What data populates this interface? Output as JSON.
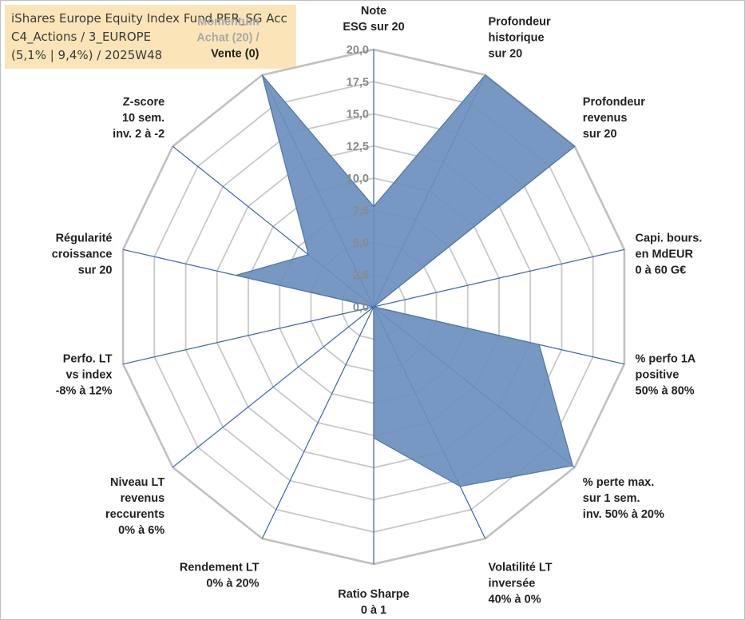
{
  "header": {
    "line1": "iShares Europe Equity Index Fund PER_SG Acc",
    "line2": "C4_Actions / 3_EUROPE",
    "line3": "(5,1% | 9,4%) / 2025W48"
  },
  "colors": {
    "fill": "#6a8fbd",
    "fill_stroke": "#4f75a8",
    "spoke": "#3a63b0",
    "grid": "#c8c8c8",
    "outer_ring": "#c0c0c0",
    "title_bg": "#fbe5b8"
  },
  "chart_data": {
    "type": "radar",
    "title": "",
    "range": [
      0,
      20
    ],
    "grid": true,
    "ticks": [
      "0,0",
      "2,5",
      "5,0",
      "7,5",
      "10,0",
      "12,5",
      "15,0",
      "17,5",
      "20,0"
    ],
    "axes": [
      {
        "label": [
          "Note",
          "ESG sur 20"
        ]
      },
      {
        "label": [
          "Profondeur",
          "historique",
          "sur 20"
        ]
      },
      {
        "label": [
          "Profondeur",
          "revenus",
          "sur 20"
        ]
      },
      {
        "label": [
          "Capi. bours.",
          "en MdEUR",
          "0 à 60 G€"
        ]
      },
      {
        "label": [
          "% perfo 1A",
          "positive",
          "50% à 80%"
        ]
      },
      {
        "label": [
          "% perte max.",
          "sur 1 sem.",
          "inv. 50% à 20%"
        ]
      },
      {
        "label": [
          "Volatilité LT",
          "inversée",
          "40% à 0%"
        ]
      },
      {
        "label": [
          "Ratio Sharpe",
          "0 à 1"
        ]
      },
      {
        "label": [
          "Rendement LT",
          "0% à 20%"
        ]
      },
      {
        "label": [
          "Niveau LT",
          "revenus",
          "reccurents",
          "0% à 6%"
        ]
      },
      {
        "label": [
          "Perfo. LT",
          "vs index",
          "-8% à 12%"
        ]
      },
      {
        "label": [
          "Régularité",
          "croissance",
          "sur 20"
        ]
      },
      {
        "label": [
          "Z-score",
          "10 sem.",
          "inv. 2 à -2"
        ]
      },
      {
        "label": [
          "Momentum",
          "Achat (20) /"
        ],
        "muted": true,
        "label2": [
          "Vente (0)"
        ]
      }
    ],
    "series": [
      {
        "values": [
          7.8,
          20,
          20,
          0,
          13.2,
          19.8,
          15.5,
          10.2,
          0,
          0,
          0,
          11,
          6.5,
          20
        ]
      }
    ]
  }
}
